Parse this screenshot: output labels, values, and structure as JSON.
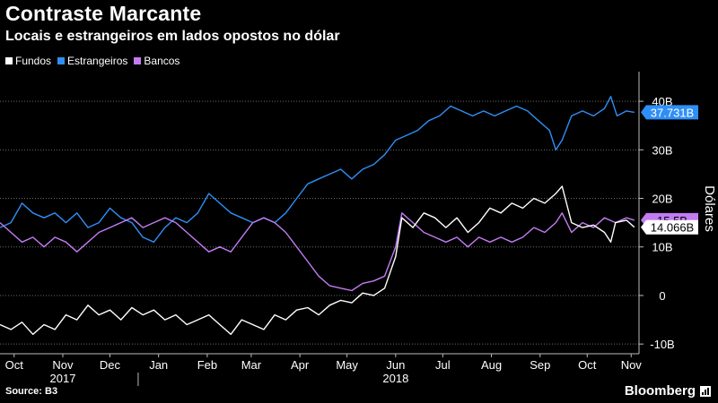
{
  "header": {
    "title": "Contraste Marcante",
    "subtitle": "Locais e estrangeiros em lados opostos no dólar"
  },
  "footer": {
    "source": "Source: B3",
    "brand": "Bloomberg"
  },
  "chart_data": {
    "type": "line",
    "title": "Contraste Marcante",
    "subtitle": "Locais e estrangeiros em lados opostos no dólar",
    "ylabel": "Dólares",
    "xlabel": "",
    "ylim": [
      -12,
      45
    ],
    "yticks": [
      -10,
      0,
      10,
      20,
      30,
      40
    ],
    "ytick_labels": [
      "-10B",
      "0",
      "10B",
      "20B",
      "30B",
      "40B"
    ],
    "grid": true,
    "legend_position": "top-left",
    "x_start": "2017-10-01",
    "x_end": "2018-11-12",
    "months": [
      {
        "label": "Oct",
        "date": "2017-10-10"
      },
      {
        "label": "Nov",
        "date": "2017-11-10"
      },
      {
        "label": "Dec",
        "date": "2017-12-10"
      },
      {
        "label": "Jan",
        "date": "2018-01-10"
      },
      {
        "label": "Feb",
        "date": "2018-02-10"
      },
      {
        "label": "Mar",
        "date": "2018-03-10"
      },
      {
        "label": "Apr",
        "date": "2018-04-10"
      },
      {
        "label": "May",
        "date": "2018-05-10"
      },
      {
        "label": "Jun",
        "date": "2018-06-10"
      },
      {
        "label": "Jul",
        "date": "2018-07-10"
      },
      {
        "label": "Aug",
        "date": "2018-08-10"
      },
      {
        "label": "Sep",
        "date": "2018-09-10"
      },
      {
        "label": "Oct",
        "date": "2018-10-10"
      },
      {
        "label": "Nov",
        "date": "2018-11-07"
      }
    ],
    "year_labels": [
      {
        "label": "2017",
        "date": "2017-11-10"
      },
      {
        "label": "2018",
        "date": "2018-06-10"
      }
    ],
    "year_divider_date": "2017-12-28",
    "series": [
      {
        "name": "Fundos",
        "color": "#ffffff",
        "last_label": "14.066B",
        "last_value": 14.066,
        "points": [
          [
            "2017-10-01",
            -6
          ],
          [
            "2017-10-08",
            -7
          ],
          [
            "2017-10-15",
            -5.5
          ],
          [
            "2017-10-22",
            -8
          ],
          [
            "2017-10-29",
            -6
          ],
          [
            "2017-11-05",
            -7
          ],
          [
            "2017-11-12",
            -4
          ],
          [
            "2017-11-19",
            -5
          ],
          [
            "2017-11-26",
            -2
          ],
          [
            "2017-12-03",
            -4
          ],
          [
            "2017-12-10",
            -3
          ],
          [
            "2017-12-17",
            -5
          ],
          [
            "2017-12-24",
            -2.5
          ],
          [
            "2017-12-31",
            -4
          ],
          [
            "2018-01-07",
            -3
          ],
          [
            "2018-01-14",
            -5
          ],
          [
            "2018-01-21",
            -4
          ],
          [
            "2018-01-28",
            -6
          ],
          [
            "2018-02-04",
            -5
          ],
          [
            "2018-02-11",
            -4
          ],
          [
            "2018-02-18",
            -6
          ],
          [
            "2018-02-25",
            -8
          ],
          [
            "2018-03-04",
            -5
          ],
          [
            "2018-03-11",
            -6
          ],
          [
            "2018-03-18",
            -7
          ],
          [
            "2018-03-25",
            -4
          ],
          [
            "2018-04-01",
            -5
          ],
          [
            "2018-04-08",
            -3
          ],
          [
            "2018-04-15",
            -2.5
          ],
          [
            "2018-04-22",
            -4
          ],
          [
            "2018-04-29",
            -2
          ],
          [
            "2018-05-06",
            -1
          ],
          [
            "2018-05-13",
            -1.5
          ],
          [
            "2018-05-20",
            0.5
          ],
          [
            "2018-05-27",
            0
          ],
          [
            "2018-06-03",
            1.5
          ],
          [
            "2018-06-10",
            8
          ],
          [
            "2018-06-14",
            16
          ],
          [
            "2018-06-21",
            14
          ],
          [
            "2018-06-28",
            17
          ],
          [
            "2018-07-05",
            16
          ],
          [
            "2018-07-12",
            14
          ],
          [
            "2018-07-19",
            16
          ],
          [
            "2018-07-26",
            13
          ],
          [
            "2018-08-02",
            15
          ],
          [
            "2018-08-09",
            18
          ],
          [
            "2018-08-16",
            17
          ],
          [
            "2018-08-23",
            19
          ],
          [
            "2018-08-30",
            18
          ],
          [
            "2018-09-06",
            20
          ],
          [
            "2018-09-13",
            19
          ],
          [
            "2018-09-20",
            21
          ],
          [
            "2018-09-24",
            22.5
          ],
          [
            "2018-09-30",
            15
          ],
          [
            "2018-10-07",
            14
          ],
          [
            "2018-10-14",
            14.5
          ],
          [
            "2018-10-21",
            13
          ],
          [
            "2018-10-25",
            11
          ],
          [
            "2018-10-28",
            15
          ],
          [
            "2018-11-04",
            15.5
          ],
          [
            "2018-11-09",
            14.066
          ]
        ]
      },
      {
        "name": "Estrangeiros",
        "color": "#2f8ff7",
        "last_label": "37.731B",
        "last_value": 37.731,
        "points": [
          [
            "2017-10-01",
            14
          ],
          [
            "2017-10-08",
            15
          ],
          [
            "2017-10-15",
            19
          ],
          [
            "2017-10-22",
            17
          ],
          [
            "2017-10-29",
            16
          ],
          [
            "2017-11-05",
            17
          ],
          [
            "2017-11-12",
            15
          ],
          [
            "2017-11-19",
            17
          ],
          [
            "2017-11-26",
            14
          ],
          [
            "2017-12-03",
            15
          ],
          [
            "2017-12-10",
            18
          ],
          [
            "2017-12-17",
            16
          ],
          [
            "2017-12-24",
            15
          ],
          [
            "2017-12-31",
            12
          ],
          [
            "2018-01-07",
            11
          ],
          [
            "2018-01-14",
            14
          ],
          [
            "2018-01-21",
            16
          ],
          [
            "2018-01-28",
            15
          ],
          [
            "2018-02-04",
            17
          ],
          [
            "2018-02-11",
            21
          ],
          [
            "2018-02-18",
            19
          ],
          [
            "2018-02-25",
            17
          ],
          [
            "2018-03-04",
            16
          ],
          [
            "2018-03-11",
            15
          ],
          [
            "2018-03-18",
            16
          ],
          [
            "2018-03-25",
            15
          ],
          [
            "2018-04-01",
            17
          ],
          [
            "2018-04-08",
            20
          ],
          [
            "2018-04-15",
            23
          ],
          [
            "2018-04-22",
            24
          ],
          [
            "2018-04-29",
            25
          ],
          [
            "2018-05-06",
            26
          ],
          [
            "2018-05-13",
            24
          ],
          [
            "2018-05-20",
            26
          ],
          [
            "2018-05-27",
            27
          ],
          [
            "2018-06-03",
            29
          ],
          [
            "2018-06-10",
            32
          ],
          [
            "2018-06-17",
            33
          ],
          [
            "2018-06-24",
            34
          ],
          [
            "2018-07-01",
            36
          ],
          [
            "2018-07-08",
            37
          ],
          [
            "2018-07-15",
            39
          ],
          [
            "2018-07-22",
            38
          ],
          [
            "2018-07-29",
            37
          ],
          [
            "2018-08-05",
            38
          ],
          [
            "2018-08-12",
            37
          ],
          [
            "2018-08-19",
            38
          ],
          [
            "2018-08-26",
            39
          ],
          [
            "2018-09-02",
            38
          ],
          [
            "2018-09-09",
            36
          ],
          [
            "2018-09-16",
            34
          ],
          [
            "2018-09-20",
            30
          ],
          [
            "2018-09-24",
            32
          ],
          [
            "2018-09-30",
            37
          ],
          [
            "2018-10-07",
            38
          ],
          [
            "2018-10-14",
            37
          ],
          [
            "2018-10-21",
            38.5
          ],
          [
            "2018-10-25",
            41
          ],
          [
            "2018-10-29",
            37
          ],
          [
            "2018-11-04",
            38
          ],
          [
            "2018-11-09",
            37.731
          ]
        ]
      },
      {
        "name": "Bancos",
        "color": "#c27cf2",
        "last_label": "15.5B",
        "last_value": 15.5,
        "points": [
          [
            "2017-10-01",
            15
          ],
          [
            "2017-10-08",
            13
          ],
          [
            "2017-10-15",
            11
          ],
          [
            "2017-10-22",
            12
          ],
          [
            "2017-10-29",
            10
          ],
          [
            "2017-11-05",
            12
          ],
          [
            "2017-11-12",
            11
          ],
          [
            "2017-11-19",
            9
          ],
          [
            "2017-11-26",
            11
          ],
          [
            "2017-12-03",
            13
          ],
          [
            "2017-12-10",
            14
          ],
          [
            "2017-12-17",
            15
          ],
          [
            "2017-12-24",
            16
          ],
          [
            "2017-12-31",
            14
          ],
          [
            "2018-01-07",
            15
          ],
          [
            "2018-01-14",
            16
          ],
          [
            "2018-01-21",
            15
          ],
          [
            "2018-01-28",
            13
          ],
          [
            "2018-02-04",
            11
          ],
          [
            "2018-02-11",
            9
          ],
          [
            "2018-02-18",
            10
          ],
          [
            "2018-02-25",
            9
          ],
          [
            "2018-03-04",
            12
          ],
          [
            "2018-03-11",
            15
          ],
          [
            "2018-03-18",
            16
          ],
          [
            "2018-03-25",
            15
          ],
          [
            "2018-04-01",
            13
          ],
          [
            "2018-04-08",
            10
          ],
          [
            "2018-04-15",
            7
          ],
          [
            "2018-04-22",
            4
          ],
          [
            "2018-04-29",
            2
          ],
          [
            "2018-05-06",
            1.5
          ],
          [
            "2018-05-13",
            1
          ],
          [
            "2018-05-20",
            2.5
          ],
          [
            "2018-05-27",
            3
          ],
          [
            "2018-06-03",
            4
          ],
          [
            "2018-06-10",
            10
          ],
          [
            "2018-06-14",
            17
          ],
          [
            "2018-06-21",
            15
          ],
          [
            "2018-06-28",
            13
          ],
          [
            "2018-07-05",
            12
          ],
          [
            "2018-07-12",
            11
          ],
          [
            "2018-07-19",
            12
          ],
          [
            "2018-07-26",
            10
          ],
          [
            "2018-08-02",
            12
          ],
          [
            "2018-08-09",
            11
          ],
          [
            "2018-08-16",
            12
          ],
          [
            "2018-08-23",
            11
          ],
          [
            "2018-08-30",
            12
          ],
          [
            "2018-09-06",
            14
          ],
          [
            "2018-09-13",
            13
          ],
          [
            "2018-09-20",
            15
          ],
          [
            "2018-09-24",
            17
          ],
          [
            "2018-09-30",
            13
          ],
          [
            "2018-10-07",
            15
          ],
          [
            "2018-10-14",
            14
          ],
          [
            "2018-10-21",
            16
          ],
          [
            "2018-10-28",
            15
          ],
          [
            "2018-11-04",
            16
          ],
          [
            "2018-11-09",
            15.5
          ]
        ]
      }
    ]
  }
}
